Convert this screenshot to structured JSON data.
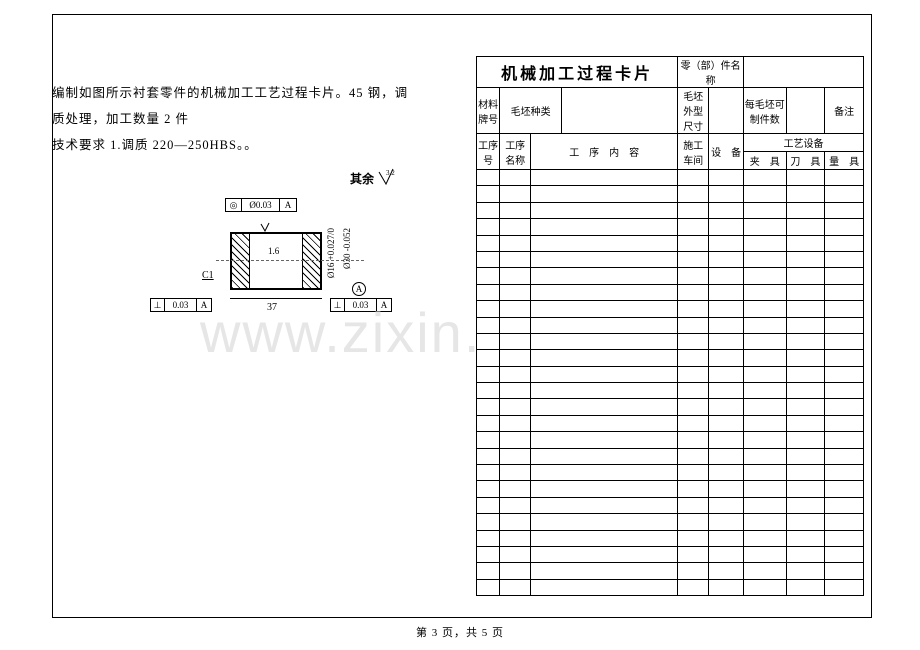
{
  "leftText": {
    "line1": "编制如图所示衬套零件的机械加工工艺过程卡片。45 钢，调质处理，加工数量 2 件",
    "line2": "技术要求 1.调质 220—250HBS。。"
  },
  "diagram": {
    "qiyu": "其余",
    "surfaceVal": "3.2",
    "tolTop": {
      "sym": "◎",
      "val": "Ø0.03",
      "datum": "A"
    },
    "innerSurface": "1.6",
    "c1": "C1",
    "dim37": "37",
    "phi16": "Ø16 +0.027/0",
    "phi30": "Ø30 -0.052",
    "datumA": "A",
    "tolBL": {
      "sym": "⊥",
      "val": "0.03",
      "datum": "A"
    },
    "tolBR": {
      "sym": "⊥",
      "val": "0.03",
      "datum": "A"
    }
  },
  "table": {
    "title": "机械加工过程卡片",
    "partNameLabel": "零（部）件名称",
    "row2": {
      "matCode": "材料牌号",
      "blankType": "毛坯种类",
      "blankSize": "毛坯外型尺寸",
      "perBlank": "每毛坯可制件数",
      "remark": "备注"
    },
    "row3": {
      "opNo": "工序号",
      "opName": "工序名称",
      "opContent": "工　序　内　容",
      "shop": "施工车间",
      "equip": "设　备",
      "processEquip": "工艺设备",
      "fixture": "夹　具",
      "cutter": "刀　具",
      "gauge": "量　具"
    },
    "bodyRows": 26
  },
  "watermark": "www.zixin.com.cn",
  "footer": "第 3 页，共 5 页",
  "colors": {
    "border": "#000000",
    "text": "#000000",
    "watermark": "#e6e6e6",
    "bg": "#ffffff"
  }
}
